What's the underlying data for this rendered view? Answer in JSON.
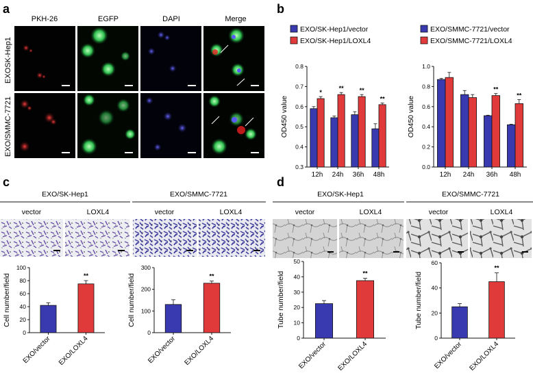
{
  "panel_letters": [
    "a",
    "b",
    "c",
    "d"
  ],
  "panel_a": {
    "column_headers": [
      "PKH-26",
      "EGFP",
      "DAPI",
      "Merge"
    ],
    "row_labels": [
      "EXOSK-Hep1",
      "EXO/SMMC-7721"
    ]
  },
  "panel_c": {
    "groups": [
      "EXO/SK-Hep1",
      "EXO/SMMC-7721"
    ],
    "image_labels": [
      "vector",
      "LOXL4",
      "vector",
      "LOXL4"
    ]
  },
  "panel_d": {
    "groups": [
      "EXO/SK-Hep1",
      "EXO/SMMC-7721"
    ],
    "image_labels": [
      "vector",
      "LOXL4",
      "vector",
      "LOXL4"
    ]
  },
  "colors": {
    "vector": "#3a3ab0",
    "loxl4": "#e03a3a",
    "axis": "#111111"
  },
  "chart_data": [
    {
      "id": "b1",
      "type": "bar",
      "categories": [
        "12h",
        "24h",
        "36h",
        "48h"
      ],
      "series": [
        {
          "name": "EXO/SK-Hep1/vector",
          "values": [
            0.59,
            0.545,
            0.56,
            0.49
          ],
          "errors": [
            0.01,
            0.008,
            0.015,
            0.025
          ]
        },
        {
          "name": "EXO/SK-Hep1/LOXL4",
          "values": [
            0.64,
            0.66,
            0.65,
            0.61
          ],
          "errors": [
            0.01,
            0.01,
            0.01,
            0.008
          ]
        }
      ],
      "significance": [
        "*",
        "**",
        "**",
        "**"
      ],
      "ylabel": "OD450 value",
      "ylim": [
        0.3,
        0.8
      ],
      "yticks": [
        "0.3",
        "0.4",
        "0.5",
        "0.6",
        "0.7",
        "0.8"
      ],
      "legend": "top"
    },
    {
      "id": "b2",
      "type": "bar",
      "categories": [
        "12h",
        "24h",
        "36h",
        "48h"
      ],
      "series": [
        {
          "name": "EXO/SMMC-7721/vector",
          "values": [
            0.87,
            0.72,
            0.51,
            0.42
          ],
          "errors": [
            0.01,
            0.04,
            0.005,
            0.005
          ]
        },
        {
          "name": "EXO/SMMC-7721/LOXL4",
          "values": [
            0.89,
            0.69,
            0.71,
            0.63
          ],
          "errors": [
            0.05,
            0.03,
            0.02,
            0.04
          ]
        }
      ],
      "significance": [
        "",
        "",
        "**",
        "**"
      ],
      "ylabel": "OD450 value",
      "ylim": [
        0.0,
        1.0
      ],
      "yticks": [
        "0.0",
        "0.2",
        "0.4",
        "0.6",
        "0.8",
        "1.0"
      ],
      "legend": "top"
    },
    {
      "id": "c1",
      "type": "bar",
      "categories": [
        "EXO/vector",
        "EXO/LOXL4"
      ],
      "values": [
        42,
        75
      ],
      "errors": [
        4,
        5
      ],
      "significance": [
        "",
        "**"
      ],
      "ylabel": "Cell number/field",
      "ylim": [
        0,
        100
      ],
      "yticks": [
        "0",
        "20",
        "40",
        "60",
        "80",
        "100"
      ]
    },
    {
      "id": "c2",
      "type": "bar",
      "categories": [
        "EXO/vector",
        "EXO/LOXL4"
      ],
      "values": [
        130,
        228
      ],
      "errors": [
        22,
        10
      ],
      "significance": [
        "",
        "**"
      ],
      "ylabel": "Cell number/field",
      "ylim": [
        0,
        300
      ],
      "yticks": [
        "0",
        "100",
        "200",
        "300"
      ]
    },
    {
      "id": "d1",
      "type": "bar",
      "categories": [
        "EXO/vector",
        "EXO/LOXL4"
      ],
      "values": [
        22.5,
        37.5
      ],
      "errors": [
        2,
        1.5
      ],
      "significance": [
        "",
        "**"
      ],
      "ylabel": "Tube number/field",
      "ylim": [
        0,
        50
      ],
      "yticks": [
        "0",
        "10",
        "20",
        "30",
        "40",
        "50"
      ]
    },
    {
      "id": "d2",
      "type": "bar",
      "categories": [
        "EXO/vector",
        "EXO/LOXL4"
      ],
      "values": [
        25,
        45
      ],
      "errors": [
        2.5,
        7
      ],
      "significance": [
        "",
        "**"
      ],
      "ylabel": "Tube number/field",
      "ylim": [
        0,
        60
      ],
      "yticks": [
        "0",
        "20",
        "40",
        "60"
      ]
    }
  ]
}
